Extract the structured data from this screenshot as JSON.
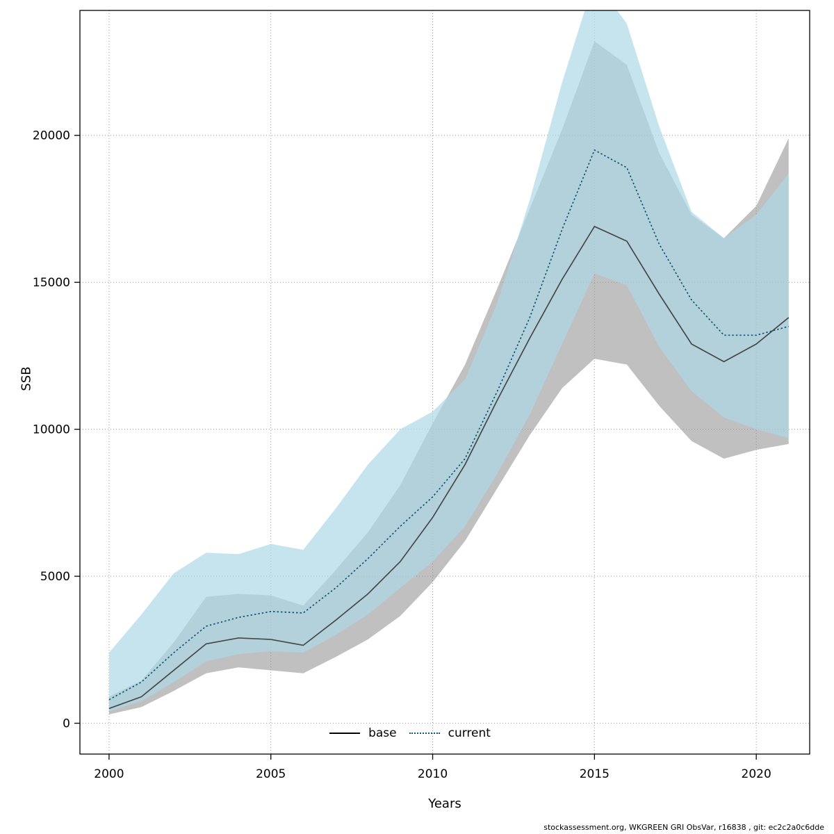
{
  "figure": {
    "footer": "stockassessment.org, WKGREEN GRI ObsVar, r16838 , git: ec2c2a0c6dde"
  },
  "legend": {
    "base_label": "base",
    "current_label": "current"
  },
  "chart_data": {
    "type": "line",
    "title": "",
    "xlabel": "Years",
    "ylabel": "SSB",
    "grid": "dotted",
    "legend_position": "bottom-inside",
    "xlim": [
      1999.1,
      2021.65
    ],
    "ylim": [
      -1050,
      24250
    ],
    "xticks": [
      2000,
      2005,
      2010,
      2015,
      2020
    ],
    "yticks": [
      0,
      5000,
      10000,
      15000,
      20000
    ],
    "x": [
      2000,
      2001,
      2002,
      2003,
      2004,
      2005,
      2006,
      2007,
      2008,
      2009,
      2010,
      2011,
      2012,
      2013,
      2014,
      2015,
      2016,
      2017,
      2018,
      2019,
      2020,
      2021
    ],
    "series": [
      {
        "name": "base",
        "style": "solid",
        "line_color": "#474747",
        "band_color": "#8c8c8c",
        "band_opacity": 0.55,
        "values": [
          500,
          900,
          1800,
          2700,
          2900,
          2850,
          2650,
          3500,
          4400,
          5500,
          7000,
          8800,
          11000,
          13100,
          15100,
          16900,
          16400,
          14600,
          12900,
          12300,
          12900,
          13800
        ],
        "lower": [
          300,
          550,
          1100,
          1700,
          1900,
          1800,
          1700,
          2250,
          2850,
          3650,
          4800,
          6200,
          8000,
          9800,
          11400,
          12400,
          12200,
          10800,
          9600,
          9000,
          9300,
          9500
        ],
        "upper": [
          900,
          1450,
          2750,
          4300,
          4400,
          4350,
          4000,
          5200,
          6500,
          8100,
          10200,
          12200,
          14800,
          17500,
          20200,
          23200,
          22400,
          19400,
          17300,
          16500,
          17600,
          19900
        ]
      },
      {
        "name": "current",
        "style": "dotted",
        "line_color": "#0d5876",
        "band_color": "#add8e6",
        "band_opacity": 0.7,
        "values": [
          800,
          1400,
          2400,
          3300,
          3600,
          3800,
          3750,
          4600,
          5600,
          6700,
          7700,
          9000,
          11300,
          13800,
          16800,
          19500,
          18900,
          16300,
          14400,
          13200,
          13200,
          13500
        ],
        "lower": [
          400,
          750,
          1400,
          2100,
          2350,
          2450,
          2400,
          3000,
          3700,
          4600,
          5500,
          6700,
          8500,
          10500,
          12900,
          15300,
          14900,
          12800,
          11300,
          10400,
          10000,
          9700
        ],
        "upper": [
          2400,
          3700,
          5100,
          5800,
          5750,
          6100,
          5900,
          7300,
          8800,
          10000,
          10600,
          11700,
          14300,
          17800,
          21800,
          25300,
          23800,
          20300,
          17400,
          16500,
          17300,
          18700
        ]
      }
    ]
  }
}
